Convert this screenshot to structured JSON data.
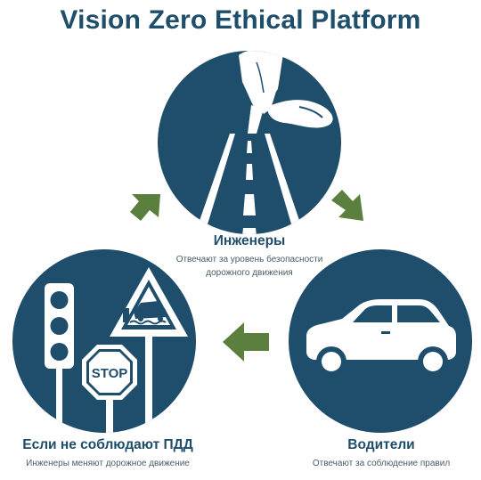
{
  "title": "Vision Zero Ethical Platform",
  "colors": {
    "navy": "#1e4e6b",
    "arrow_green": "#5b7f3f",
    "white": "#ffffff"
  },
  "nodes": {
    "engineers": {
      "title": "Инженеры",
      "desc_line1": "Отвечают за уровень безопасности",
      "desc_line2": "дорожного движения",
      "icon": "road-with-hand-icon"
    },
    "drivers": {
      "title": "Водители",
      "desc": "Отвечают за соблюдение правил",
      "icon": "car-icon"
    },
    "violations": {
      "title": "Если не соблюдают ПДД",
      "desc": "Инженеры меняют дорожное движение",
      "icon": "traffic-signs-icon",
      "stop_text": "STOP"
    }
  },
  "arrows": [
    "arrow-engineers-to-drivers",
    "arrow-drivers-to-violations",
    "arrow-violations-to-engineers"
  ]
}
